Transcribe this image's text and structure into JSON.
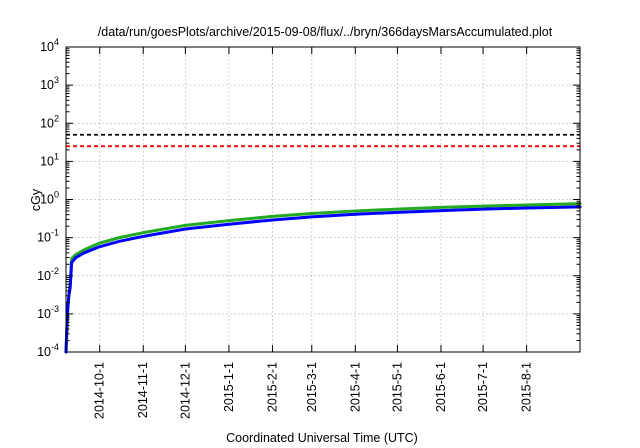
{
  "chart_data": {
    "type": "line",
    "title": "/data/run/goesPlots/archive/2015-09-08/flux/../bryn/366daysMarsAccumulated.plot",
    "xlabel": "Coordinated Universal Time (UTC)",
    "ylabel": "cGy",
    "y_scale": "log",
    "ylim": [
      0.0001,
      10000
    ],
    "xlim": [
      "2014-09-07",
      "2015-09-08"
    ],
    "grid": true,
    "y_ticks": [
      {
        "base": "10",
        "exp": "-4",
        "value": 0.0001
      },
      {
        "base": "10",
        "exp": "-3",
        "value": 0.001
      },
      {
        "base": "10",
        "exp": "-2",
        "value": 0.01
      },
      {
        "base": "10",
        "exp": "-1",
        "value": 0.1
      },
      {
        "base": "10",
        "exp": "0",
        "value": 1
      },
      {
        "base": "10",
        "exp": "1",
        "value": 10
      },
      {
        "base": "10",
        "exp": "2",
        "value": 100
      },
      {
        "base": "10",
        "exp": "3",
        "value": 1000
      },
      {
        "base": "10",
        "exp": "4",
        "value": 10000
      }
    ],
    "x_ticks": [
      {
        "label": "2014-10-1",
        "date": "2014-10-01"
      },
      {
        "label": "2014-11-1",
        "date": "2014-11-01"
      },
      {
        "label": "2014-12-1",
        "date": "2014-12-01"
      },
      {
        "label": "2015-1-1",
        "date": "2015-01-01"
      },
      {
        "label": "2015-2-1",
        "date": "2015-02-01"
      },
      {
        "label": "2015-3-1",
        "date": "2015-03-01"
      },
      {
        "label": "2015-4-1",
        "date": "2015-04-01"
      },
      {
        "label": "2015-5-1",
        "date": "2015-05-01"
      },
      {
        "label": "2015-6-1",
        "date": "2015-06-01"
      },
      {
        "label": "2015-7-1",
        "date": "2015-07-01"
      },
      {
        "label": "2015-8-1",
        "date": "2015-08-01"
      }
    ],
    "reference_lines": [
      {
        "value": 50,
        "color": "#000000",
        "style": "dashed"
      },
      {
        "value": 25,
        "color": "#ff0000",
        "style": "dashed"
      }
    ],
    "series": [
      {
        "color": "#22aa22",
        "x": [
          "2014-09-07",
          "2014-09-08",
          "2014-09-09",
          "2014-09-10",
          "2014-09-11",
          "2014-09-14",
          "2014-09-20",
          "2014-10-01",
          "2014-10-15",
          "2014-11-01",
          "2014-12-01",
          "2015-01-01",
          "2015-02-01",
          "2015-03-01",
          "2015-04-01",
          "2015-05-01",
          "2015-06-01",
          "2015-07-01",
          "2015-08-01",
          "2015-09-08"
        ],
        "y": [
          0.0001,
          0.001,
          0.003,
          0.006,
          0.028,
          0.036,
          0.048,
          0.072,
          0.1,
          0.135,
          0.21,
          0.28,
          0.36,
          0.43,
          0.5,
          0.56,
          0.62,
          0.67,
          0.72,
          0.78
        ]
      },
      {
        "color": "#0000ff",
        "x": [
          "2014-09-07",
          "2014-09-08",
          "2014-09-09",
          "2014-09-10",
          "2014-09-11",
          "2014-09-14",
          "2014-09-20",
          "2014-10-01",
          "2014-10-15",
          "2014-11-01",
          "2014-12-01",
          "2015-01-01",
          "2015-02-01",
          "2015-03-01",
          "2015-04-01",
          "2015-05-01",
          "2015-06-01",
          "2015-07-01",
          "2015-08-01",
          "2015-09-08"
        ],
        "y": [
          0.0001,
          0.001,
          0.003,
          0.005,
          0.022,
          0.03,
          0.04,
          0.058,
          0.08,
          0.108,
          0.168,
          0.225,
          0.29,
          0.35,
          0.41,
          0.46,
          0.51,
          0.56,
          0.6,
          0.64
        ]
      }
    ]
  }
}
